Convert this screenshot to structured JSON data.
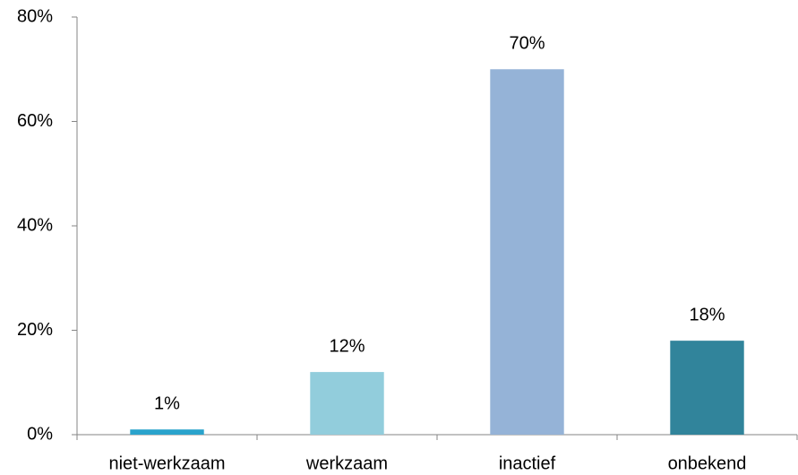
{
  "chart_data": {
    "type": "bar",
    "categories": [
      "niet-werkzaam",
      "werkzaam",
      "inactief",
      "onbekend"
    ],
    "values": [
      1,
      12,
      70,
      18
    ],
    "value_labels": [
      "1%",
      "12%",
      "70%",
      "18%"
    ],
    "colors": [
      "#2aa3cc",
      "#92cddc",
      "#95b3d7",
      "#31849b"
    ],
    "ylim": [
      0,
      80
    ],
    "yticks": [
      {
        "value": 0,
        "label": "0%"
      },
      {
        "value": 20,
        "label": "20%"
      },
      {
        "value": 40,
        "label": "40%"
      },
      {
        "value": 60,
        "label": "60%"
      },
      {
        "value": 80,
        "label": "80%"
      }
    ],
    "grid": false
  }
}
